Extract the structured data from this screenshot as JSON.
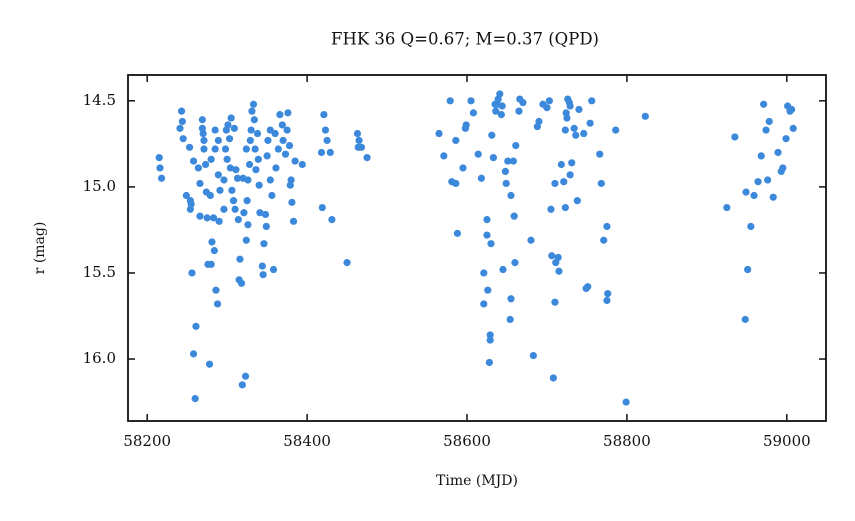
{
  "chart_data": {
    "type": "scatter",
    "title": "FHK 36  Q=0.67; M=0.37 (QPD)",
    "x_label": "Time (MJD)",
    "y_label": "r (mag)",
    "color": "#3c89dc",
    "xlim": [
      58176,
      59049
    ],
    "ylim": [
      16.36,
      14.35
    ],
    "xticks": [
      58200,
      58400,
      58600,
      58800,
      59000
    ],
    "yticks": [
      14.5,
      {
        "value": 15.0,
        "label": "15.0"
      },
      15.5,
      {
        "value": 16.0,
        "label": "16.0"
      }
    ],
    "x": [
      58215,
      58216,
      58218,
      58241,
      58243,
      58244,
      58245,
      58249,
      58253,
      58254,
      58254,
      58255,
      58256,
      58258,
      58258,
      58260,
      58261,
      58264,
      58266,
      58266,
      58269,
      58269,
      58270,
      58271,
      58271,
      58273,
      58274,
      58275,
      58276,
      58278,
      58279,
      58280,
      58280,
      58281,
      58283,
      58284,
      58285,
      58285,
      58286,
      58288,
      58289,
      58289,
      58290,
      58291,
      58296,
      58296,
      58298,
      58299,
      58300,
      58301,
      58303,
      58304,
      58305,
      58306,
      58308,
      58309,
      58310,
      58311,
      58313,
      58314,
      58315,
      58316,
      58318,
      58319,
      58320,
      58321,
      58323,
      58324,
      58324,
      58325,
      58326,
      58326,
      58328,
      58329,
      58330,
      58331,
      58333,
      58334,
      58335,
      58336,
      58338,
      58339,
      58340,
      58341,
      58344,
      58345,
      58346,
      58348,
      58349,
      58350,
      58351,
      58354,
      58354,
      58356,
      58358,
      58360,
      58361,
      58364,
      58366,
      58369,
      58370,
      58373,
      58375,
      58376,
      58378,
      58379,
      58380,
      58381,
      58383,
      58385,
      58394,
      58418,
      58419,
      58421,
      58423,
      58425,
      58429,
      58431,
      58450,
      58463,
      58464,
      58465,
      58468,
      58475,
      58565,
      58571,
      58579,
      58581,
      58586,
      58586,
      58588,
      58595,
      58598,
      58599,
      58605,
      58608,
      58614,
      58618,
      58621,
      58621,
      58625,
      58625,
      58626,
      58628,
      58629,
      58629,
      58630,
      58631,
      58633,
      58635,
      58636,
      58638,
      58639,
      58641,
      58643,
      58644,
      58645,
      58648,
      58649,
      58651,
      58654,
      58655,
      58655,
      58658,
      58659,
      58660,
      58661,
      58665,
      58666,
      58670,
      58680,
      58683,
      58688,
      58690,
      58695,
      58700,
      58703,
      58705,
      58706,
      58708,
      58710,
      58710,
      58711,
      58714,
      58715,
      58718,
      58721,
      58723,
      58723,
      58724,
      58725,
      58726,
      58728,
      58729,
      58729,
      58731,
      58734,
      58736,
      58738,
      58740,
      58746,
      58749,
      58751,
      58754,
      58756,
      58766,
      58768,
      58771,
      58775,
      58775,
      58776,
      58786,
      58799,
      58823,
      58925,
      58935,
      58948,
      58949,
      58951,
      58955,
      58959,
      58964,
      58968,
      58971,
      58974,
      58976,
      58978,
      58983,
      58989,
      58993,
      58995,
      58999,
      59001,
      59004,
      59006,
      59008
    ],
    "values": [
      14.83,
      14.89,
      14.95,
      14.66,
      14.56,
      14.62,
      14.72,
      15.05,
      14.77,
      15.08,
      15.13,
      15.1,
      15.5,
      14.85,
      15.97,
      16.23,
      15.81,
      14.89,
      14.98,
      15.17,
      14.61,
      14.66,
      14.69,
      14.73,
      14.78,
      14.87,
      15.03,
      15.18,
      15.45,
      16.03,
      15.05,
      14.84,
      15.45,
      15.32,
      15.18,
      15.37,
      14.78,
      14.67,
      15.6,
      15.68,
      14.73,
      14.93,
      15.2,
      15.02,
      15.13,
      14.96,
      14.78,
      14.67,
      14.84,
      14.64,
      14.72,
      14.89,
      14.6,
      15.02,
      15.08,
      14.66,
      15.13,
      14.9,
      14.95,
      15.19,
      15.54,
      15.42,
      15.56,
      16.15,
      14.95,
      15.15,
      16.1,
      15.31,
      14.78,
      15.08,
      15.22,
      14.96,
      14.87,
      14.73,
      14.67,
      14.56,
      14.52,
      14.61,
      14.78,
      14.9,
      14.69,
      14.84,
      14.99,
      15.15,
      15.46,
      15.51,
      15.33,
      15.16,
      15.23,
      14.82,
      14.73,
      14.96,
      14.67,
      15.05,
      15.48,
      14.69,
      14.89,
      14.78,
      14.58,
      14.64,
      14.73,
      14.81,
      14.67,
      14.57,
      14.76,
      14.99,
      14.96,
      15.09,
      15.2,
      14.85,
      14.87,
      14.8,
      15.12,
      14.58,
      14.67,
      14.73,
      14.8,
      15.19,
      15.44,
      14.69,
      14.77,
      14.73,
      14.77,
      14.83,
      14.69,
      14.82,
      14.5,
      14.97,
      14.73,
      14.98,
      15.27,
      14.89,
      14.66,
      14.64,
      14.5,
      14.57,
      14.81,
      14.95,
      15.5,
      15.68,
      15.19,
      15.28,
      15.6,
      16.02,
      15.86,
      15.89,
      15.33,
      14.7,
      14.83,
      14.52,
      14.56,
      14.52,
      14.49,
      14.46,
      14.58,
      14.53,
      15.48,
      14.91,
      14.98,
      14.85,
      15.77,
      15.05,
      15.65,
      14.85,
      15.17,
      15.44,
      14.76,
      14.56,
      14.49,
      14.51,
      15.31,
      15.98,
      14.65,
      14.62,
      14.52,
      14.54,
      14.5,
      15.13,
      15.4,
      16.11,
      14.98,
      15.67,
      15.44,
      15.41,
      15.49,
      14.87,
      14.97,
      15.12,
      14.67,
      14.57,
      14.6,
      14.49,
      14.51,
      14.53,
      14.93,
      14.86,
      14.66,
      14.7,
      15.08,
      14.55,
      14.69,
      15.59,
      15.58,
      14.63,
      14.5,
      14.81,
      14.98,
      15.31,
      15.23,
      15.66,
      15.62,
      14.67,
      16.25,
      14.59,
      15.12,
      14.71,
      15.77,
      15.03,
      15.48,
      15.23,
      15.05,
      14.97,
      14.82,
      14.52,
      14.67,
      14.96,
      14.62,
      15.06,
      14.8,
      14.91,
      14.89,
      14.72,
      14.53,
      14.56,
      14.55,
      14.66
    ]
  }
}
